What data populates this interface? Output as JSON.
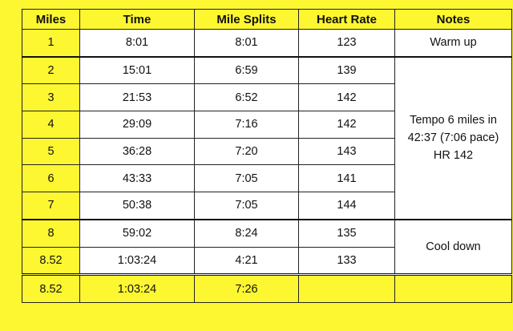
{
  "table": {
    "headers": [
      "Miles",
      "Time",
      "Mile Splits",
      "Heart Rate",
      "Notes"
    ],
    "rows": [
      {
        "miles": "1",
        "time": "8:01",
        "split": "8:01",
        "hr": "123"
      },
      {
        "miles": "2",
        "time": "15:01",
        "split": "6:59",
        "hr": "139"
      },
      {
        "miles": "3",
        "time": "21:53",
        "split": "6:52",
        "hr": "142"
      },
      {
        "miles": "4",
        "time": "29:09",
        "split": "7:16",
        "hr": "142"
      },
      {
        "miles": "5",
        "time": "36:28",
        "split": "7:20",
        "hr": "143"
      },
      {
        "miles": "6",
        "time": "43:33",
        "split": "7:05",
        "hr": "141"
      },
      {
        "miles": "7",
        "time": "50:38",
        "split": "7:05",
        "hr": "144"
      },
      {
        "miles": "8",
        "time": "59:02",
        "split": "8:24",
        "hr": "135"
      },
      {
        "miles": "8.52",
        "time": "1:03:24",
        "split": "4:21",
        "hr": "133"
      }
    ],
    "notes": {
      "warmup": "Warm up",
      "tempo_line1": "Tempo 6 miles in",
      "tempo_line2": "42:37 (7:06 pace)",
      "tempo_line3": "HR 142",
      "cooldown": "Cool down"
    },
    "total": {
      "miles": "8.52",
      "time": "1:03:24",
      "split": "7:26",
      "hr": "",
      "notes": ""
    }
  },
  "colors": {
    "background": "#fdf731",
    "cell": "#ffffff",
    "border": "#222222"
  }
}
